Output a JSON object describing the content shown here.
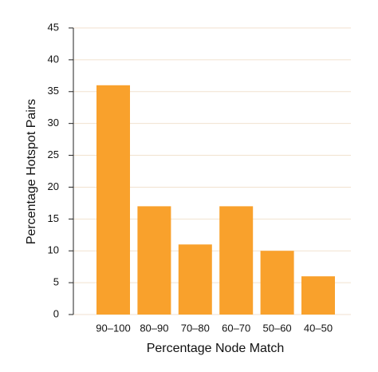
{
  "chart_data": {
    "type": "bar",
    "x_label": "Percentage Node Match",
    "y_label": "Percentage Hotspot Pairs",
    "categories": [
      "90–100",
      "80–90",
      "70–80",
      "60–70",
      "50–60",
      "40–50"
    ],
    "values": [
      36,
      17,
      11,
      17,
      10,
      6
    ],
    "color": "#f9a12c",
    "ylim": [
      0,
      45
    ],
    "yticks": [
      0,
      5,
      10,
      15,
      20,
      25,
      30,
      35,
      40,
      45
    ],
    "grid": true
  }
}
